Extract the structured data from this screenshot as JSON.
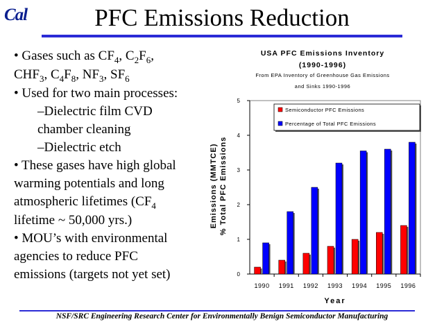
{
  "logo": "Cal",
  "title": "PFC Emissions Reduction",
  "bullets": {
    "b1_pre": "• Gases such as CF",
    "b1_cf_sub": "4",
    "b1_mid1": ", C",
    "b1_c2_sub": "2",
    "b1_f": "F",
    "b1_f6_sub": "6",
    "b1_end": ",",
    "b1_line2_a": "CHF",
    "b1_chf_sub": "3",
    "b1_line2_b": ", C",
    "b1_c4_sub": "4",
    "b1_line2_c": "F",
    "b1_f8_sub": "8",
    "b1_line2_d": ", NF",
    "b1_nf_sub": "3",
    "b1_line2_e": ", SF",
    "b1_sf_sub": "6",
    "b2": "• Used for two main processes:",
    "b2_sub1_line1": "–Dielectric film CVD",
    "b2_sub1_line2": "chamber cleaning",
    "b2_sub2": "–Dielectric etch",
    "b3_line1": "• These gases have high global",
    "b3_line2": "warming potentials and long",
    "b3_line3": "atmospheric lifetimes (CF",
    "b3_cf_sub": "4",
    "b3_line4": "lifetime ~ 50,000 yrs.)",
    "b4_line1": "• MOU’s with environmental",
    "b4_line2": "agencies to reduce PFC",
    "b4_line3": "emissions (targets not yet set)"
  },
  "footer": "NSF/SRC Engineering Research Center for Environmentally Benign Semiconductor Manufacturing",
  "chart_data": {
    "type": "bar",
    "title_line1": "USA PFC Emissions Inventory",
    "title_line2": "(1990-1996)",
    "subtitle_line1": "From EPA Inventory of Greenhouse Gas Emissions",
    "subtitle_line2": "and Sinks 1990-1996",
    "ylabel_line1": "Emissions (MMTCE)",
    "ylabel_line2": "% Total PFC Emissions",
    "xlabel": "Year",
    "categories": [
      "1990",
      "1991",
      "1992",
      "1993",
      "1994",
      "1995",
      "1996"
    ],
    "ylim": [
      0,
      5
    ],
    "yticks": [
      "0",
      "1",
      "2",
      "3",
      "4",
      "5"
    ],
    "legend_position": "top-right",
    "series": [
      {
        "name": "Semiconductor PFC Emissions",
        "color": "#ff0000",
        "values": [
          0.2,
          0.4,
          0.6,
          0.8,
          1.0,
          1.2,
          1.4
        ]
      },
      {
        "name": "Percentage of Total PFC Emissions",
        "color": "#0000ff",
        "values": [
          0.9,
          1.8,
          2.5,
          3.2,
          3.55,
          3.6,
          3.8
        ]
      }
    ]
  }
}
